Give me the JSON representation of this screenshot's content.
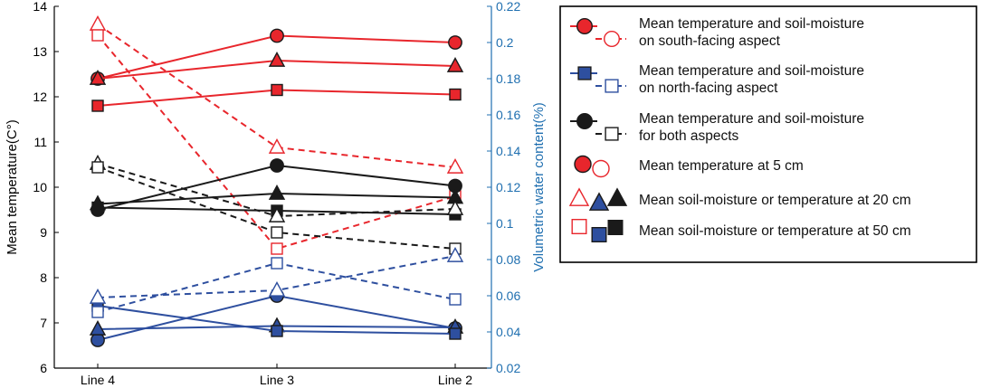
{
  "chart_data": {
    "type": "line",
    "categories": [
      "Line 4",
      "Line 3",
      "Line 2"
    ],
    "y_left": {
      "label": "Mean temperature(C°)",
      "range": [
        6,
        14
      ],
      "ticks": [
        6,
        7,
        8,
        9,
        10,
        11,
        12,
        13,
        14
      ],
      "tick_labels": [
        "6",
        "7",
        "8",
        "9",
        "10",
        "11",
        "12",
        "13",
        "14"
      ]
    },
    "y_right": {
      "label": "Volumetric water content(%)",
      "range": [
        0.02,
        0.22
      ],
      "ticks": [
        0.02,
        0.04,
        0.06,
        0.08,
        0.1,
        0.12,
        0.14,
        0.16,
        0.18,
        0.2,
        0.22
      ],
      "tick_labels": [
        "0.02",
        "0.04",
        "0.06",
        "0.08",
        "0.1",
        "0.12",
        "0.14",
        "0.16",
        "0.18",
        "0.2",
        "0.22"
      ]
    },
    "colors": {
      "south": "#e8262c",
      "north": "#2e4f9f",
      "both": "#1a1a1a",
      "right_axis": "#1f6fb0"
    },
    "series": [
      {
        "name": "South temperature 5 cm",
        "group": "south",
        "kind": "temperature",
        "marker": "circle",
        "axis": "left",
        "values": [
          12.4,
          13.35,
          13.2
        ]
      },
      {
        "name": "South temperature 20 cm",
        "group": "south",
        "kind": "temperature",
        "marker": "triangle",
        "axis": "left",
        "values": [
          12.4,
          12.8,
          12.68
        ]
      },
      {
        "name": "South temperature 50 cm",
        "group": "south",
        "kind": "temperature",
        "marker": "square",
        "axis": "left",
        "values": [
          11.8,
          12.15,
          12.05
        ]
      },
      {
        "name": "South soil-moisture 20 cm",
        "group": "south",
        "kind": "moisture",
        "marker": "triangle",
        "axis": "right",
        "values": [
          0.21,
          0.142,
          0.131
        ]
      },
      {
        "name": "South soil-moisture 50 cm",
        "group": "south",
        "kind": "moisture",
        "marker": "square",
        "axis": "right",
        "values": [
          0.204,
          0.086,
          0.115
        ]
      },
      {
        "name": "Both temperature 5 cm",
        "group": "both",
        "kind": "temperature",
        "marker": "circle",
        "axis": "left",
        "values": [
          9.5,
          10.48,
          10.03
        ]
      },
      {
        "name": "Both temperature 20 cm",
        "group": "both",
        "kind": "temperature",
        "marker": "triangle",
        "axis": "left",
        "values": [
          9.63,
          9.86,
          9.77
        ]
      },
      {
        "name": "Both temperature 50 cm",
        "group": "both",
        "kind": "temperature",
        "marker": "square",
        "axis": "left",
        "values": [
          9.55,
          9.48,
          9.4
        ]
      },
      {
        "name": "Both soil-moisture 20 cm",
        "group": "both",
        "kind": "moisture",
        "marker": "triangle",
        "axis": "right",
        "values": [
          0.133,
          0.104,
          0.108
        ]
      },
      {
        "name": "Both soil-moisture 50 cm",
        "group": "both",
        "kind": "moisture",
        "marker": "square",
        "axis": "right",
        "values": [
          0.131,
          0.095,
          0.086
        ]
      },
      {
        "name": "North temperature 5 cm",
        "group": "north",
        "kind": "temperature",
        "marker": "circle",
        "axis": "left",
        "values": [
          6.62,
          7.6,
          6.88
        ]
      },
      {
        "name": "North temperature 20 cm",
        "group": "north",
        "kind": "temperature",
        "marker": "triangle",
        "axis": "left",
        "values": [
          6.86,
          6.93,
          6.9
        ]
      },
      {
        "name": "North temperature 50 cm",
        "group": "north",
        "kind": "temperature",
        "marker": "square",
        "axis": "left",
        "values": [
          7.38,
          6.82,
          6.76
        ]
      },
      {
        "name": "North soil-moisture 20 cm",
        "group": "north",
        "kind": "moisture",
        "marker": "triangle",
        "axis": "right",
        "values": [
          0.059,
          0.063,
          0.082
        ]
      },
      {
        "name": "North soil-moisture 50 cm",
        "group": "north",
        "kind": "moisture",
        "marker": "square",
        "axis": "right",
        "values": [
          0.051,
          0.078,
          0.058
        ]
      }
    ],
    "legend": {
      "position": "right",
      "entries": [
        {
          "icon": "pair-circle",
          "color_key": "south",
          "lines": [
            "Mean temperature and soil-moisture",
            "on south-facing aspect"
          ]
        },
        {
          "icon": "pair-square",
          "color_key": "north",
          "lines": [
            "Mean temperature and soil-moisture",
            "on north-facing aspect"
          ]
        },
        {
          "icon": "pair-circle-square",
          "color_key": "both",
          "lines": [
            "Mean temperature and soil-moisture",
            "for both aspects"
          ]
        },
        {
          "icon": "circles",
          "lines": [
            "Mean temperature at 5 cm"
          ]
        },
        {
          "icon": "triangles",
          "lines": [
            "Mean soil-moisture or temperature at 20 cm"
          ]
        },
        {
          "icon": "squares",
          "lines": [
            "Mean soil-moisture or temperature at 50 cm"
          ]
        }
      ]
    }
  }
}
